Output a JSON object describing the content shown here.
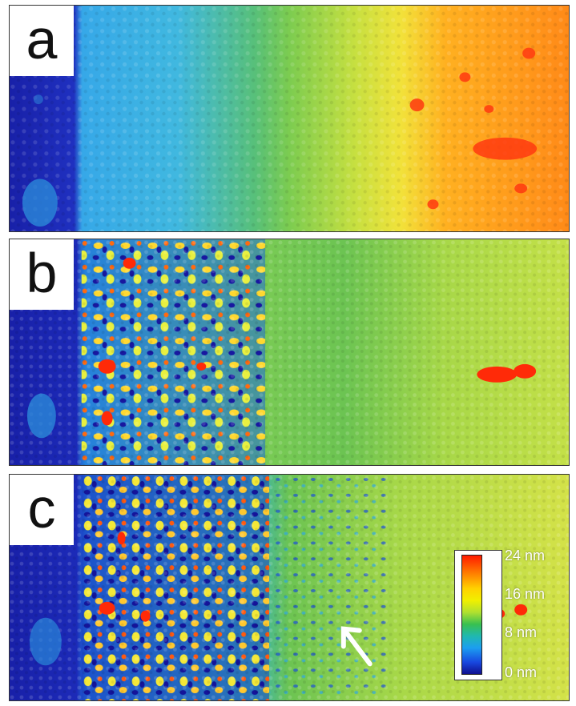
{
  "panels": [
    {
      "id": "a",
      "label": "a"
    },
    {
      "id": "b",
      "label": "b"
    },
    {
      "id": "c",
      "label": "c"
    }
  ],
  "colorbar": {
    "ticks": [
      "24 nm",
      "16 nm",
      "8 nm",
      "0 nm"
    ],
    "colors": [
      "#ff1a00",
      "#ffd200",
      "#38c050",
      "#1c9ef0",
      "#10108f"
    ]
  },
  "annotations": {
    "arrow_color": "#ffffff"
  }
}
